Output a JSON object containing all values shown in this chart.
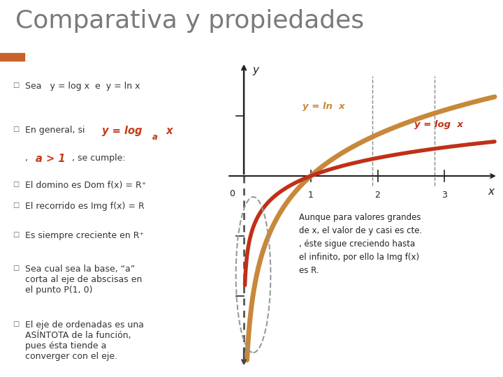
{
  "title": "Comparativa y propiedades",
  "title_color": "#7a7a7a",
  "title_fontsize": 26,
  "header_bar_color": "#a8bfcf",
  "header_accent_color": "#c8622a",
  "background_color": "#ffffff",
  "bullet_color": "#333333",
  "bullet_fontsize": 9.0,
  "highlight_color": "#c8391a",
  "ln_color": "#c8883a",
  "log_color": "#c03018",
  "ln_label": "y = ln  x",
  "log_label": "y = log  x",
  "axis_color": "#222222",
  "note_text": "Aunque para valores grandes\nde x, el valor de y casi es cte.\n, éste sigue creciendo hasta\nel infinito, por ello la Img f(x)\nes R.",
  "note_color": "#222222",
  "note_fontsize": 8.5,
  "dashed_oval_color": "#999999",
  "x_label": "x",
  "y_label": "y",
  "x_lim": [
    -0.3,
    3.8
  ],
  "y_lim": [
    -3.2,
    1.9
  ]
}
